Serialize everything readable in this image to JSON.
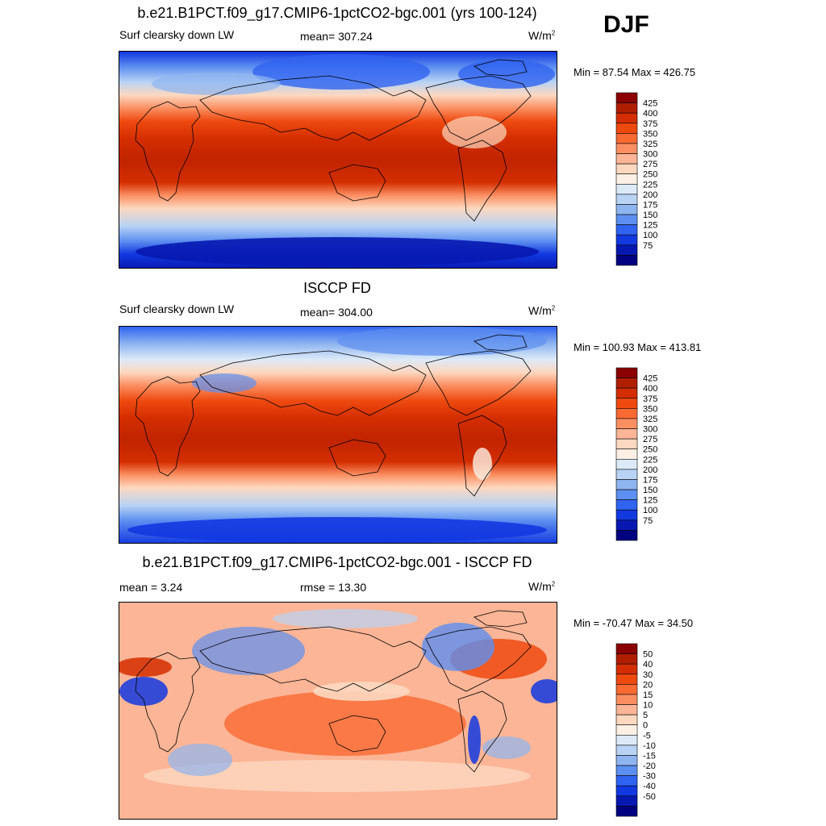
{
  "season": "DJF",
  "panels": [
    {
      "id": "model",
      "title": "b.e21.B1PCT.f09_g17.CMIP6-1pctCO2-bgc.001 (yrs 100-124)",
      "left_label": "Surf clearsky down LW",
      "center_label": "mean= 307.24",
      "units": "W/m",
      "units_exp": "2",
      "minmax": "Min =  87.54 Max = 426.75"
    },
    {
      "id": "obs",
      "title": "ISCCP FD",
      "left_label": "Surf clearsky down LW",
      "center_label": "mean= 304.00",
      "units": "W/m",
      "units_exp": "2",
      "minmax": "Min = 100.93 Max = 413.81"
    },
    {
      "id": "diff",
      "title": "b.e21.B1PCT.f09_g17.CMIP6-1pctCO2-bgc.001 - ISCCP FD",
      "left_label": "mean =   3.24",
      "center_label": "rmse =  13.30",
      "units": "W/m",
      "units_exp": "2",
      "minmax": "Min = -70.47 Max =  34.50"
    }
  ],
  "colorbars": {
    "absolute": {
      "labels": [
        "425",
        "400",
        "375",
        "350",
        "325",
        "300",
        "275",
        "250",
        "225",
        "200",
        "175",
        "150",
        "125",
        "100",
        "75"
      ],
      "colors": [
        "#8b0000",
        "#b01e00",
        "#d42e00",
        "#ee4a10",
        "#f96a33",
        "#fb8f62",
        "#fcb596",
        "#fcd8c0",
        "#fcf0e4",
        "#dceaf8",
        "#b8d3f4",
        "#8fb5f0",
        "#5d8ff0",
        "#2f63f0",
        "#1238e0",
        "#0718b0",
        "#000080"
      ]
    },
    "difference": {
      "labels": [
        "50",
        "40",
        "30",
        "20",
        "15",
        "10",
        "5",
        "0",
        "-5",
        "-10",
        "-15",
        "-20",
        "-30",
        "-40",
        "-50"
      ],
      "colors": [
        "#8b0000",
        "#b01e00",
        "#d42e00",
        "#ee4a10",
        "#f96a33",
        "#fb8f62",
        "#fcb596",
        "#fcd8c0",
        "#fcf0e4",
        "#dceaf8",
        "#b8d3f4",
        "#8fb5f0",
        "#5d8ff0",
        "#2f63f0",
        "#1238e0",
        "#0718b0",
        "#000080"
      ]
    }
  }
}
